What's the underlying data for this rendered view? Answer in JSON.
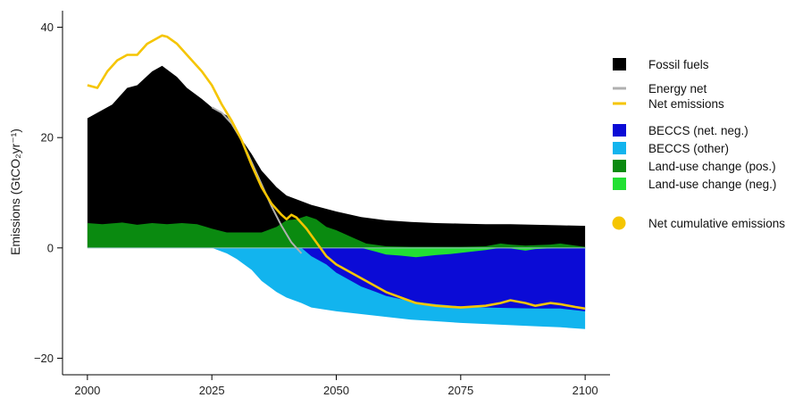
{
  "chart_data": {
    "type": "area",
    "ylabel": "Emissions (GtCO₂yr⁻¹)",
    "xlabel": "",
    "xlim": [
      1995,
      2105
    ],
    "ylim": [
      -23,
      43
    ],
    "xticks": [
      2000,
      2025,
      2050,
      2075,
      2100
    ],
    "yticks": [
      40,
      20,
      0,
      -20
    ],
    "grid": false,
    "zero_line": true,
    "legend_placement": "right",
    "legend": [
      {
        "label": "Fossil fuels",
        "kind": "box",
        "color": "#000000"
      },
      {
        "label": "Energy net",
        "kind": "line",
        "color": "#b0b0b0"
      },
      {
        "label": "Net emissions",
        "kind": "line",
        "color": "#f5c500"
      },
      {
        "label": "BECCS (net. neg.)",
        "kind": "box",
        "color": "#0b0bd6"
      },
      {
        "label": "BECCS (other)",
        "kind": "box",
        "color": "#12b4ee"
      },
      {
        "label": "Land-use change (pos.)",
        "kind": "box",
        "color": "#0a8a10"
      },
      {
        "label": "Land-use change (neg.)",
        "kind": "box",
        "color": "#22e033"
      },
      {
        "label": "Net cumulative emissions",
        "kind": "dot",
        "color": "#f5c500"
      }
    ],
    "series": [
      {
        "name": "Fossil fuels",
        "color": "#000000",
        "x": [
          2000,
          2005,
          2008,
          2010,
          2013,
          2015,
          2018,
          2020,
          2023,
          2025,
          2028,
          2030,
          2033,
          2035,
          2038,
          2040,
          2045,
          2050,
          2055,
          2060,
          2065,
          2070,
          2075,
          2080,
          2085,
          2090,
          2095,
          2100
        ],
        "y": [
          23.5,
          26,
          29,
          29.5,
          32,
          33,
          31,
          29,
          27,
          25.5,
          24,
          21,
          17,
          14,
          11,
          9.5,
          7.8,
          6.6,
          5.6,
          5,
          4.7,
          4.5,
          4.4,
          4.3,
          4.3,
          4.2,
          4.1,
          4.0
        ]
      },
      {
        "name": "Energy net",
        "color": "#b0b0b0",
        "x": [
          2025,
          2027,
          2029,
          2031,
          2033,
          2035,
          2037,
          2039,
          2041,
          2043
        ],
        "y": [
          25.5,
          24.5,
          22.5,
          19.5,
          15.5,
          11.5,
          7.5,
          4,
          1,
          -1
        ]
      },
      {
        "name": "Land-use change (pos.)",
        "color": "#0a8a10",
        "x": [
          2000,
          2003,
          2007,
          2010,
          2013,
          2016,
          2019,
          2022,
          2025,
          2028,
          2032,
          2035,
          2038,
          2040,
          2042,
          2044,
          2046,
          2048,
          2050,
          2053,
          2056,
          2060,
          2065,
          2070,
          2075,
          2080,
          2083,
          2085,
          2088,
          2090,
          2093,
          2095,
          2098,
          2100
        ],
        "y": [
          4.5,
          4.3,
          4.6,
          4.2,
          4.5,
          4.3,
          4.5,
          4.3,
          3.5,
          2.8,
          2.8,
          2.8,
          3.8,
          5.0,
          5.2,
          5.8,
          5.2,
          3.8,
          3.2,
          2,
          0.8,
          0.3,
          0.2,
          0.2,
          0.2,
          0.3,
          0.8,
          0.6,
          0.4,
          0.5,
          0.6,
          0.8,
          0.4,
          0.2
        ]
      },
      {
        "name": "Land-use change (neg.)",
        "color": "#22e033",
        "x": [
          2055,
          2058,
          2060,
          2063,
          2066,
          2070,
          2073,
          2076,
          2080,
          2083,
          2085,
          2088,
          2090,
          2095,
          2100
        ],
        "y": [
          0,
          -0.7,
          -1.2,
          -1.4,
          -1.7,
          -1.3,
          -1.1,
          -0.8,
          -0.4,
          0,
          -0.1,
          -0.5,
          -0.2,
          0,
          0
        ]
      },
      {
        "name": "BECCS (net. neg.)",
        "color": "#0b0bd6",
        "x": [
          2043,
          2045,
          2048,
          2050,
          2053,
          2055,
          2058,
          2060,
          2063,
          2066,
          2070,
          2075,
          2080,
          2085,
          2090,
          2095,
          2100
        ],
        "y": [
          0,
          -1.5,
          -3,
          -4.5,
          -6,
          -7,
          -8,
          -8.7,
          -9.3,
          -9.8,
          -10.2,
          -10.6,
          -10.8,
          -10.9,
          -11,
          -11,
          -11.5
        ]
      },
      {
        "name": "BECCS (other)",
        "color": "#12b4ee",
        "x": [
          2025,
          2028,
          2030,
          2033,
          2035,
          2038,
          2040,
          2043,
          2045,
          2050,
          2055,
          2060,
          2065,
          2070,
          2075,
          2080,
          2085,
          2090,
          2095,
          2100
        ],
        "y": [
          0,
          -1,
          -2,
          -4,
          -6,
          -8,
          -9,
          -10,
          -10.8,
          -11.5,
          -12,
          -12.5,
          -13,
          -13.3,
          -13.6,
          -13.8,
          -14,
          -14.2,
          -14.4,
          -14.7
        ]
      },
      {
        "name": "Net emissions",
        "color": "#f5c500",
        "x": [
          2000,
          2002,
          2004,
          2006,
          2008,
          2010,
          2012,
          2014,
          2015,
          2016,
          2018,
          2020,
          2023,
          2025,
          2027,
          2029,
          2031,
          2033,
          2035,
          2037,
          2039,
          2040,
          2041,
          2042,
          2043,
          2044,
          2046,
          2048,
          2050,
          2053,
          2056,
          2060,
          2063,
          2066,
          2070,
          2075,
          2080,
          2083,
          2085,
          2088,
          2090,
          2093,
          2095,
          2098,
          2100
        ],
        "y": [
          29.5,
          29,
          32,
          34,
          35,
          35,
          37,
          38,
          38.5,
          38.3,
          37,
          35,
          32,
          29.5,
          26,
          23,
          19.5,
          15,
          11,
          8,
          6,
          5.2,
          6,
          5.5,
          4.5,
          3.5,
          1,
          -1.5,
          -3,
          -4.5,
          -6,
          -8,
          -9,
          -10,
          -10.5,
          -10.8,
          -10.5,
          -10,
          -9.5,
          -10,
          -10.5,
          -10,
          -10.2,
          -10.7,
          -11
        ]
      }
    ]
  }
}
